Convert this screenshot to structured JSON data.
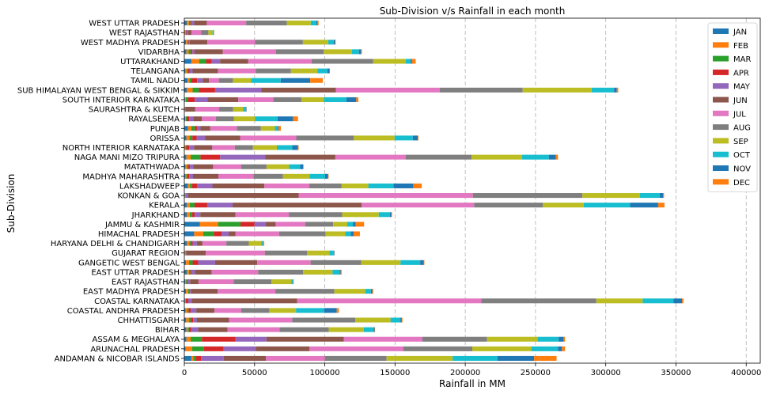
{
  "chart_data": {
    "type": "bar",
    "orientation": "horizontal",
    "stacked": true,
    "title": "Sub-Division v/s Rainfall in each month",
    "xlabel": "Rainfall in MM",
    "ylabel": "Sub-Division",
    "xlim": [
      0,
      410000
    ],
    "xticks": [
      0,
      50000,
      100000,
      150000,
      200000,
      250000,
      300000,
      350000,
      400000
    ],
    "xtick_labels": [
      "0",
      "50000",
      "100000",
      "150000",
      "200000",
      "250000",
      "300000",
      "350000",
      "400000"
    ],
    "grid": "x-dashed",
    "legend_position": "top-right",
    "categories": [
      "ANDAMAN & NICOBAR ISLANDS",
      "ARUNACHAL PRADESH",
      "ASSAM & MEGHALAYA",
      "BIHAR",
      "CHHATTISGARH",
      "COASTAL ANDHRA PRADESH",
      "COASTAL KARNATAKA",
      "EAST MADHYA PRADESH",
      "EAST RAJASTHAN",
      "EAST UTTAR PRADESH",
      "GANGETIC WEST BENGAL",
      "GUJARAT REGION",
      "HARYANA DELHI & CHANDIGARH",
      "HIMACHAL PRADESH",
      "JAMMU & KASHMIR",
      "JHARKHAND",
      "KERALA",
      "KONKAN & GOA",
      "LAKSHADWEEP",
      "MADHYA MAHARASHTRA",
      "MATATHWADA",
      "NAGA MANI MIZO TRIPURA",
      "NORTH INTERIOR KARNATAKA",
      "ORISSA",
      "PUNJAB",
      "RAYALSEEMA",
      "SAURASHTRA & KUTCH",
      "SOUTH INTERIOR KARNATAKA",
      "SUB HIMALAYAN WEST BENGAL & SIKKIM",
      "TAMIL NADU",
      "TELANGANA",
      "UTTARAKHAND",
      "VIDARBHA",
      "WEST MADHYA PRADESH",
      "WEST RAJASTHAN",
      "WEST UTTAR PRADESH"
    ],
    "series": [
      {
        "name": "JAN",
        "color": "#1f77b4",
        "values": [
          5000,
          1000,
          1500,
          1500,
          1300,
          1000,
          500,
          1200,
          600,
          1700,
          1200,
          300,
          1700,
          7000,
          11000,
          1700,
          1800,
          300,
          2500,
          800,
          800,
          1500,
          300,
          1500,
          2500,
          600,
          200,
          500,
          1700,
          2300,
          800,
          5000,
          1500,
          1200,
          300,
          1700
        ]
      },
      {
        "name": "FEB",
        "color": "#ff7f0e",
        "values": [
          1500,
          4500,
          3000,
          1000,
          1900,
          1000,
          200,
          1600,
          600,
          1600,
          2200,
          200,
          1800,
          6500,
          13000,
          2200,
          2000,
          100,
          1500,
          600,
          900,
          3000,
          400,
          2200,
          2500,
          400,
          100,
          600,
          4200,
          1300,
          900,
          5500,
          1600,
          800,
          400,
          1600
        ]
      },
      {
        "name": "MAR",
        "color": "#2ca02c",
        "values": [
          1500,
          8500,
          8000,
          800,
          1400,
          1000,
          300,
          800,
          500,
          1000,
          2500,
          200,
          1200,
          7500,
          16000,
          1500,
          3500,
          300,
          1500,
          700,
          1000,
          7000,
          700,
          2000,
          2500,
          700,
          100,
          1300,
          4500,
          1500,
          1000,
          5000,
          1500,
          700,
          300,
          1000
        ]
      },
      {
        "name": "APR",
        "color": "#d62728",
        "values": [
          4000,
          14000,
          24000,
          1500,
          1700,
          1500,
          1800,
          500,
          600,
          700,
          4000,
          200,
          1200,
          5500,
          10000,
          2000,
          9000,
          200,
          3500,
          1300,
          1300,
          14000,
          2000,
          3000,
          1500,
          1700,
          100,
          5000,
          11500,
          4000,
          1200,
          4000,
          1200,
          400,
          400,
          700
        ]
      },
      {
        "name": "MAY",
        "color": "#9467bd",
        "values": [
          16000,
          23000,
          22000,
          5000,
          2500,
          4000,
          2500,
          700,
          1800,
          2500,
          12000,
          400,
          3000,
          5000,
          8000,
          4000,
          18000,
          1500,
          11000,
          2800,
          2500,
          32000,
          3500,
          6000,
          2500,
          3000,
          300,
          9000,
          33000,
          4000,
          2000,
          6000,
          1500,
          800,
          1200,
          2000
        ]
      },
      {
        "name": "JUN",
        "color": "#8c564b",
        "values": [
          30000,
          38000,
          55000,
          21000,
          23000,
          13000,
          75000,
          19000,
          6000,
          12000,
          30000,
          14000,
          4000,
          5000,
          7000,
          25000,
          92000,
          79000,
          37000,
          18000,
          14000,
          50000,
          13000,
          25000,
          7000,
          6000,
          7000,
          22000,
          53000,
          4500,
          18000,
          20000,
          20000,
          12500,
          2500,
          9000
        ]
      },
      {
        "name": "JUL",
        "color": "#e377c2",
        "values": [
          42000,
          67000,
          56000,
          37000,
          45000,
          19000,
          131000,
          41000,
          25000,
          33000,
          38000,
          42000,
          17000,
          31000,
          21000,
          38000,
          80000,
          124000,
          32000,
          25000,
          20000,
          50000,
          16000,
          40000,
          19000,
          10000,
          17000,
          25000,
          74000,
          7000,
          27000,
          45000,
          38000,
          34000,
          7000,
          28000
        ]
      },
      {
        "name": "AUG",
        "color": "#7f7f7f",
        "values": [
          44000,
          49000,
          46000,
          35000,
          45000,
          20000,
          82000,
          42000,
          27000,
          32000,
          36000,
          30000,
          16000,
          33000,
          20000,
          38000,
          49000,
          78000,
          23000,
          21000,
          18000,
          47000,
          13000,
          41000,
          17000,
          13000,
          10000,
          20000,
          59000,
          10000,
          25000,
          44000,
          34000,
          34000,
          5000,
          29000
        ]
      },
      {
        "name": "SEP",
        "color": "#bcbd22",
        "values": [
          47000,
          42000,
          36000,
          25000,
          25000,
          19000,
          33000,
          22000,
          14000,
          21000,
          28000,
          16000,
          9000,
          14000,
          10000,
          26000,
          29000,
          41000,
          19000,
          19000,
          16000,
          36000,
          17000,
          29000,
          10000,
          15000,
          7000,
          16000,
          49000,
          13000,
          19000,
          23000,
          20000,
          18000,
          3000,
          17000
        ]
      },
      {
        "name": "OCT",
        "color": "#17becf",
        "values": [
          32000,
          19000,
          15000,
          7000,
          7000,
          20000,
          22000,
          4000,
          1200,
          5000,
          14000,
          3000,
          1000,
          4000,
          4000,
          8000,
          33000,
          14000,
          18000,
          11000,
          8000,
          19000,
          11000,
          13000,
          2000,
          16000,
          2000,
          16000,
          16000,
          21000,
          7000,
          3500,
          5000,
          4000,
          700,
          4000
        ]
      },
      {
        "name": "NOV",
        "color": "#1f77b4",
        "values": [
          26000,
          2800,
          3500,
          700,
          1000,
          9000,
          6000,
          1000,
          300,
          800,
          2500,
          500,
          200,
          2000,
          2000,
          1000,
          20000,
          2500,
          14000,
          2000,
          2000,
          5000,
          4000,
          3500,
          500,
          11000,
          400,
          7000,
          2000,
          21000,
          1500,
          1000,
          1500,
          900,
          200,
          800
        ]
      },
      {
        "name": "DEC",
        "color": "#ff7f0e",
        "values": [
          16000,
          2200,
          1000,
          300,
          500,
          1500,
          1000,
          700,
          300,
          700,
          500,
          100,
          800,
          4500,
          6000,
          500,
          4500,
          600,
          6000,
          500,
          400,
          1500,
          500,
          500,
          1700,
          3500,
          100,
          1500,
          1000,
          9000,
          200,
          2700,
          600,
          400,
          200,
          800
        ]
      }
    ]
  }
}
